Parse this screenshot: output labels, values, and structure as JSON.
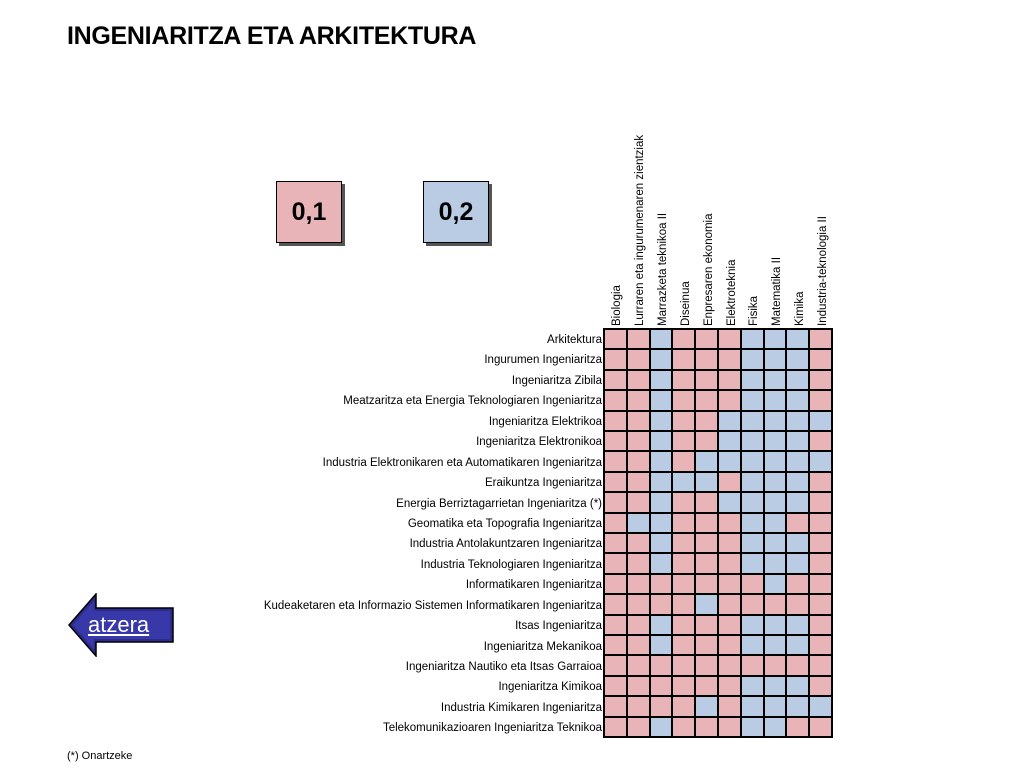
{
  "title": "INGENIARITZA ETA ARKITEKTURA",
  "legend": {
    "pink": "0,1",
    "blue": "0,2"
  },
  "colors": {
    "pink": "#e8b4b8",
    "blue": "#b9cce4"
  },
  "columns": [
    "Biologia",
    "Lurraren eta ingurumenaren zientziak",
    "Marrazketa teknikoa II",
    "Diseinua",
    "Enpresaren ekonomia",
    "Elektroteknia",
    "Fisika",
    "Matematika II",
    "Kimika",
    "Industria-teknologia II"
  ],
  "rows": [
    {
      "label": "Arkitektura",
      "cells": "ppbpppbbbp"
    },
    {
      "label": "Ingurumen Ingeniaritza",
      "cells": "ppbpppbbbp"
    },
    {
      "label": "Ingeniaritza Zibila",
      "cells": "ppbpppbbbp"
    },
    {
      "label": "Meatzaritza eta Energia Teknologiaren Ingeniaritza",
      "cells": "ppbpppbbbp"
    },
    {
      "label": "Ingeniaritza Elektrikoa",
      "cells": "ppbppbbbbb"
    },
    {
      "label": "Ingeniaritza Elektronikoa",
      "cells": "ppbppbbbbp"
    },
    {
      "label": "Industria Elektronikaren eta Automatikaren Ingeniaritza",
      "cells": "ppbpbbbbbb"
    },
    {
      "label": "Eraikuntza Ingeniaritza",
      "cells": "ppbbbpbbbp"
    },
    {
      "label": "Energia Berriztagarrietan Ingeniaritza (*)",
      "cells": "ppbppbbbbp"
    },
    {
      "label": "Geomatika eta Topografia Ingeniaritza",
      "cells": "pbbpppbbpp"
    },
    {
      "label": "Industria Antolakuntzaren Ingeniaritza",
      "cells": "ppbpppbbbp"
    },
    {
      "label": "Industria Teknologiaren Ingeniaritza",
      "cells": "ppbpppbbbp"
    },
    {
      "label": "Informatikaren Ingeniaritza",
      "cells": "pppppppbpp"
    },
    {
      "label": "Kudeaketaren eta Informazio Sistemen Informatikaren Ingeniaritza",
      "cells": "ppppbppppp"
    },
    {
      "label": "Itsas Ingeniaritza",
      "cells": "ppbpppbbbp"
    },
    {
      "label": "Ingeniaritza Mekanikoa",
      "cells": "ppbpppbbbp"
    },
    {
      "label": "Ingeniaritza Nautiko eta Itsas Garraioa",
      "cells": "pppppppppp"
    },
    {
      "label": "Ingeniaritza Kimikoa",
      "cells": "ppppppbbbp"
    },
    {
      "label": "Industria Kimikaren Ingeniaritza",
      "cells": "ppppbpbbbb"
    },
    {
      "label": "Telekomunikazioaren Ingeniaritza Teknikoa",
      "cells": "ppbpppbbpp"
    }
  ],
  "back_button": {
    "label": "atzera",
    "icon": "left-arrow-icon"
  },
  "footnote": "(*) Onartzeke"
}
